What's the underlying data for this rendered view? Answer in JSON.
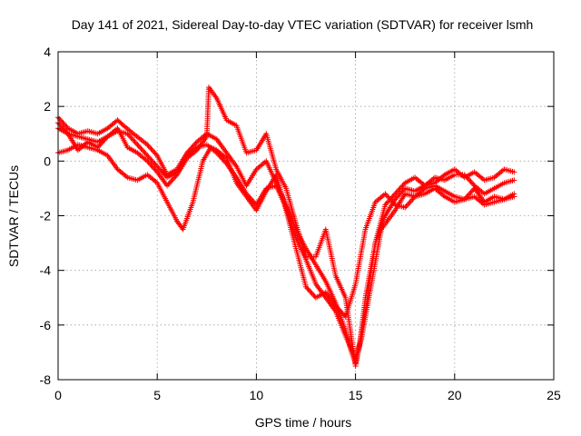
{
  "chart_data": {
    "type": "scatter",
    "title": "Day 141 of 2021, Sidereal Day-to-day VTEC variation (SDTVAR) for receiver lsmh",
    "xlabel": "GPS time / hours",
    "ylabel": "SDTVAR / TECUs",
    "xlim": [
      0,
      25
    ],
    "ylim": [
      -8,
      4
    ],
    "xticks": [
      0,
      5,
      10,
      15,
      20,
      25
    ],
    "yticks": [
      -8,
      -6,
      -4,
      -2,
      0,
      2,
      4
    ],
    "grid": true,
    "marker": "plus",
    "color": "#ff0000",
    "series": [
      {
        "x": [
          0,
          0.5,
          1.0,
          1.5,
          2.0,
          2.5,
          3.0,
          3.3,
          3.8,
          4.5,
          5.0,
          5.5,
          6.0,
          6.5,
          7.0,
          7.5,
          8.0,
          8.5,
          9.0,
          9.5,
          10.0,
          10.5,
          11.0,
          11.5,
          12.0,
          12.5,
          13.0,
          13.5,
          14.0,
          14.5,
          14.8,
          15.0,
          15.2,
          15.5,
          16.0,
          16.5,
          17.0,
          17.5,
          18.0,
          18.5,
          19.0,
          19.5,
          20.0,
          20.5,
          21.0,
          21.5,
          22.0,
          22.5,
          23.0
        ],
        "y": [
          1.6,
          1.2,
          1.0,
          1.1,
          1.0,
          1.2,
          1.5,
          1.3,
          1.0,
          0.6,
          0.2,
          -0.5,
          -0.3,
          0.3,
          0.7,
          1.0,
          0.8,
          0.3,
          -0.2,
          -0.9,
          -0.3,
          0.0,
          -0.8,
          -1.6,
          -2.5,
          -3.2,
          -3.8,
          -4.4,
          -5.2,
          -6.2,
          -7.0,
          -7.4,
          -6.8,
          -5.0,
          -3.0,
          -2.0,
          -1.4,
          -1.0,
          -1.1,
          -0.9,
          -0.6,
          -0.7,
          -0.5,
          -0.5,
          -0.9,
          -1.2,
          -1.0,
          -0.8,
          -0.7
        ]
      },
      {
        "x": [
          0,
          0.5,
          1.0,
          1.5,
          2.0,
          2.5,
          3.0,
          3.5,
          4.0,
          4.5,
          5.0,
          5.5,
          6.0,
          6.5,
          7.0,
          7.5,
          8.0,
          8.5,
          9.0,
          9.5,
          10.0,
          10.5,
          11.0,
          11.5,
          12.0,
          12.5,
          13.0,
          13.5,
          14.0,
          14.5,
          15.0,
          15.3,
          15.8,
          16.3,
          17.0,
          17.5,
          18.0,
          18.5,
          19.0,
          19.5,
          20.0,
          20.5,
          21.0,
          21.5,
          22.0,
          22.5,
          23.0
        ],
        "y": [
          1.2,
          1.0,
          0.9,
          0.8,
          0.7,
          0.9,
          1.1,
          1.0,
          0.6,
          0.2,
          -0.2,
          -0.6,
          -0.4,
          0.2,
          0.5,
          0.6,
          0.3,
          -0.1,
          -0.6,
          -1.2,
          -1.6,
          -1.0,
          -0.9,
          -1.7,
          -2.8,
          -3.6,
          -4.5,
          -5.0,
          -5.5,
          -6.4,
          -7.2,
          -6.5,
          -4.5,
          -2.5,
          -1.8,
          -1.2,
          -1.3,
          -1.0,
          -0.9,
          -1.1,
          -1.3,
          -1.4,
          -1.0,
          -1.5,
          -1.3,
          -1.4,
          -1.2
        ]
      },
      {
        "x": [
          0,
          0.5,
          1.0,
          1.5,
          2.0,
          2.5,
          3.0,
          3.5,
          4.0,
          4.5,
          5.0,
          5.5,
          6.0,
          6.3,
          6.8,
          7.3,
          7.7,
          8.0,
          8.5,
          9.0,
          9.5,
          10.0,
          10.5,
          11.0,
          11.5,
          12.0,
          12.5,
          13.0,
          13.5,
          14.0,
          14.5,
          15.0,
          15.5,
          16.0,
          16.5,
          17.0,
          17.5,
          18.0,
          18.5,
          19.0,
          19.5,
          20.0,
          20.5,
          21.0,
          21.5,
          22.0,
          22.5,
          23.0
        ],
        "y": [
          0.3,
          0.4,
          0.6,
          0.5,
          0.4,
          0.2,
          -0.3,
          -0.6,
          -0.7,
          -0.5,
          -0.8,
          -1.5,
          -2.2,
          -2.5,
          -1.5,
          0.0,
          0.5,
          0.4,
          0.1,
          -0.8,
          -1.3,
          -1.8,
          -1.1,
          -0.5,
          -1.8,
          -3.2,
          -4.6,
          -5.0,
          -4.8,
          -5.3,
          -5.7,
          -4.5,
          -2.5,
          -1.5,
          -1.2,
          -1.6,
          -1.7,
          -1.3,
          -1.2,
          -1.0,
          -1.3,
          -1.5,
          -1.4,
          -1.3,
          -1.6,
          -1.5,
          -1.4,
          -1.3
        ]
      },
      {
        "x": [
          0,
          0.5,
          1.0,
          1.5,
          2.0,
          2.5,
          3.0,
          3.5,
          4.0,
          4.5,
          5.0,
          5.5,
          6.0,
          6.5,
          7.0,
          7.5,
          7.6,
          8.0,
          8.5,
          9.0,
          9.5,
          10.0,
          10.5,
          11.0,
          11.5,
          12.0,
          12.5,
          13.0,
          13.5,
          14.0,
          14.5,
          15.0,
          15.5,
          16.0,
          16.5,
          17.0,
          17.5,
          18.0,
          18.5,
          19.0,
          19.5,
          20.0,
          20.5,
          21.0,
          21.5,
          22.0,
          22.5,
          23.0
        ],
        "y": [
          1.4,
          1.0,
          0.4,
          0.7,
          0.5,
          0.9,
          1.2,
          0.5,
          0.3,
          0.0,
          -0.4,
          -0.9,
          -0.5,
          0.1,
          0.4,
          0.9,
          2.7,
          2.3,
          1.5,
          1.3,
          0.3,
          0.4,
          1.0,
          -0.3,
          -1.0,
          -2.3,
          -3.5,
          -3.5,
          -2.5,
          -4.2,
          -5.0,
          -7.5,
          -5.5,
          -3.0,
          -1.6,
          -1.2,
          -0.8,
          -0.6,
          -0.9,
          -0.8,
          -0.5,
          -0.3,
          -0.6,
          -0.4,
          -0.7,
          -0.6,
          -0.3,
          -0.4
        ]
      }
    ]
  }
}
